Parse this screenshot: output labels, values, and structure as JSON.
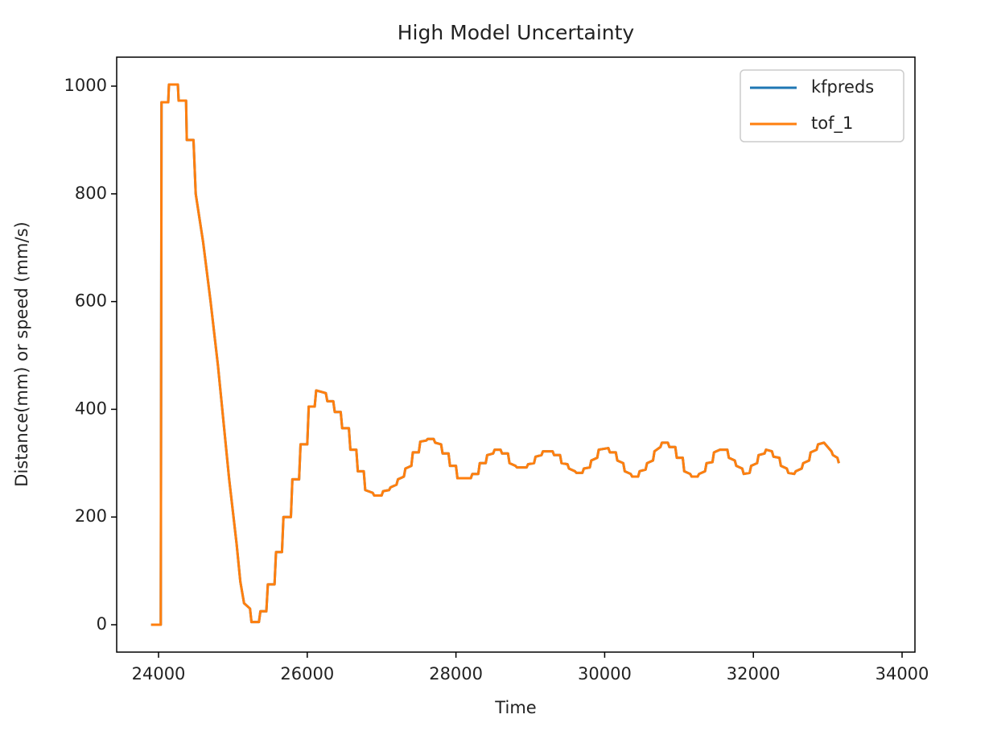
{
  "chart_data": {
    "type": "line",
    "title": "High Model Uncertainty",
    "xlabel": "Time",
    "ylabel": "Distance(mm) or speed (mm/s)",
    "x": [
      23900,
      24030,
      24040,
      24130,
      24140,
      24260,
      24270,
      24370,
      24380,
      24470,
      24500,
      24600,
      24700,
      24800,
      24900,
      24950,
      25050,
      25100,
      25150,
      25230,
      25250,
      25350,
      25370,
      25450,
      25470,
      25560,
      25580,
      25660,
      25680,
      25780,
      25800,
      25890,
      25910,
      26000,
      26020,
      26100,
      26120,
      26250,
      26270,
      26350,
      26370,
      26450,
      26470,
      26560,
      26580,
      26660,
      26680,
      26760,
      26780,
      26880,
      26900,
      27000,
      27020,
      27100,
      27120,
      27200,
      27220,
      27300,
      27320,
      27400,
      27420,
      27500,
      27520,
      27600,
      27620,
      27700,
      27720,
      27800,
      27820,
      27900,
      27920,
      28000,
      28020,
      28100,
      28200,
      28220,
      28300,
      28320,
      28400,
      28420,
      28500,
      28520,
      28600,
      28620,
      28700,
      28720,
      28800,
      28820,
      28950,
      28970,
      29050,
      29070,
      29150,
      29170,
      29300,
      29320,
      29400,
      29420,
      29500,
      29520,
      29600,
      29620,
      29700,
      29720,
      29800,
      29820,
      29900,
      29920,
      30050,
      30070,
      30150,
      30170,
      30250,
      30270,
      30350,
      30370,
      30450,
      30470,
      30550,
      30570,
      30650,
      30670,
      30750,
      30770,
      30850,
      30870,
      30950,
      30970,
      31050,
      31070,
      31150,
      31170,
      31250,
      31270,
      31350,
      31370,
      31450,
      31470,
      31550,
      31570,
      31650,
      31670,
      31750,
      31770,
      31850,
      31870,
      31950,
      31970,
      32050,
      32070,
      32150,
      32170,
      32250,
      32270,
      32350,
      32370,
      32450,
      32470,
      32550,
      32570,
      32650,
      32670,
      32750,
      32770,
      32850,
      32870,
      32950,
      33000,
      33050,
      33070,
      33130,
      33150
    ],
    "series": [
      {
        "name": "kfpreds",
        "color": "#1f77b4",
        "values": [
          0,
          0,
          970,
          970,
          1003,
          1003,
          973,
          973,
          900,
          900,
          800,
          710,
          600,
          480,
          340,
          270,
          150,
          80,
          40,
          30,
          5,
          5,
          25,
          25,
          75,
          75,
          135,
          135,
          200,
          200,
          270,
          270,
          335,
          335,
          405,
          405,
          435,
          430,
          415,
          415,
          395,
          395,
          365,
          365,
          325,
          325,
          285,
          285,
          250,
          245,
          240,
          240,
          248,
          250,
          255,
          260,
          270,
          275,
          290,
          295,
          320,
          320,
          340,
          342,
          345,
          345,
          338,
          335,
          318,
          318,
          295,
          295,
          272,
          272,
          272,
          280,
          280,
          300,
          300,
          315,
          318,
          325,
          325,
          318,
          318,
          300,
          295,
          292,
          292,
          298,
          300,
          312,
          315,
          322,
          322,
          315,
          315,
          300,
          298,
          290,
          285,
          282,
          282,
          290,
          292,
          305,
          310,
          325,
          328,
          320,
          320,
          305,
          300,
          285,
          280,
          275,
          275,
          285,
          288,
          300,
          305,
          322,
          330,
          338,
          338,
          330,
          330,
          310,
          310,
          285,
          280,
          275,
          275,
          280,
          285,
          300,
          302,
          320,
          325,
          325,
          325,
          310,
          305,
          295,
          290,
          280,
          282,
          295,
          300,
          315,
          318,
          325,
          322,
          312,
          310,
          295,
          290,
          282,
          280,
          285,
          290,
          300,
          305,
          320,
          325,
          335,
          338,
          330,
          322,
          315,
          310,
          300
        ]
      },
      {
        "name": "tof_1",
        "color": "#ff7f0e",
        "values": [
          0,
          0,
          970,
          970,
          1003,
          1003,
          973,
          973,
          900,
          900,
          800,
          710,
          600,
          480,
          340,
          270,
          150,
          80,
          40,
          30,
          5,
          5,
          25,
          25,
          75,
          75,
          135,
          135,
          200,
          200,
          270,
          270,
          335,
          335,
          405,
          405,
          435,
          430,
          415,
          415,
          395,
          395,
          365,
          365,
          325,
          325,
          285,
          285,
          250,
          245,
          240,
          240,
          248,
          250,
          255,
          260,
          270,
          275,
          290,
          295,
          320,
          320,
          340,
          342,
          345,
          345,
          338,
          335,
          318,
          318,
          295,
          295,
          272,
          272,
          272,
          280,
          280,
          300,
          300,
          315,
          318,
          325,
          325,
          318,
          318,
          300,
          295,
          292,
          292,
          298,
          300,
          312,
          315,
          322,
          322,
          315,
          315,
          300,
          298,
          290,
          285,
          282,
          282,
          290,
          292,
          305,
          310,
          325,
          328,
          320,
          320,
          305,
          300,
          285,
          280,
          275,
          275,
          285,
          288,
          300,
          305,
          322,
          330,
          338,
          338,
          330,
          330,
          310,
          310,
          285,
          280,
          275,
          275,
          280,
          285,
          300,
          302,
          320,
          325,
          325,
          325,
          310,
          305,
          295,
          290,
          280,
          282,
          295,
          300,
          315,
          318,
          325,
          322,
          312,
          310,
          295,
          290,
          282,
          280,
          285,
          290,
          300,
          305,
          320,
          325,
          335,
          338,
          330,
          322,
          315,
          310,
          300
        ]
      }
    ],
    "xlim": [
      23437,
      34173
    ],
    "ylim": [
      -50.8,
      1053.8
    ],
    "xticks": [
      24000,
      26000,
      28000,
      30000,
      32000,
      34000
    ],
    "yticks": [
      0,
      200,
      400,
      600,
      800,
      1000
    ],
    "legend": "upper right",
    "grid": false
  }
}
